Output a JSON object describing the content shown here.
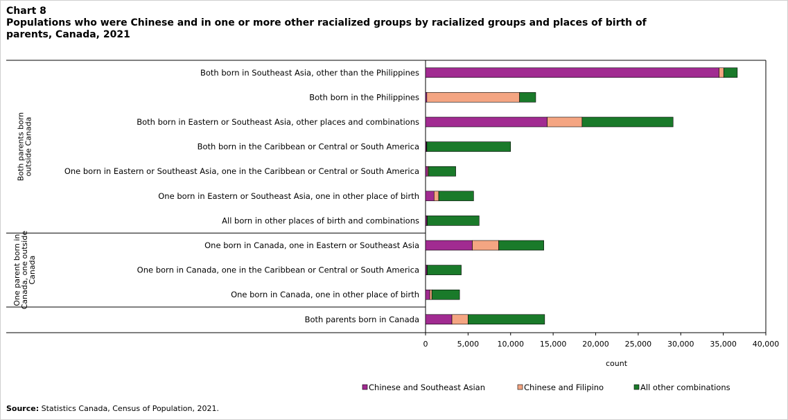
{
  "chart_number": "Chart 8",
  "title": "Populations who were Chinese and in one or more other racialized groups by racialized groups and places of birth of parents, Canada, 2021",
  "source_label": "Source:",
  "source_text": " Statistics Canada, Census of Population, 2021.",
  "colors": {
    "csa": "#a12b91",
    "cf": "#f4a582",
    "other": "#1a7a2a"
  },
  "chart_data": {
    "type": "bar",
    "orientation": "horizontal",
    "stacked": true,
    "xlabel": "count",
    "xlim": [
      0,
      40000
    ],
    "xticks": [
      0,
      5000,
      10000,
      15000,
      20000,
      25000,
      30000,
      35000,
      40000
    ],
    "xtick_labels": [
      "0",
      "5,000",
      "10,000",
      "15,000",
      "20,000",
      "25,000",
      "30,000",
      "35,000",
      "40,000"
    ],
    "groups": [
      {
        "label": "Both parents born outside Canada",
        "first": 0,
        "last": 6
      },
      {
        "label": "One parent born in Canada, one outside Canada",
        "first": 7,
        "last": 9
      }
    ],
    "categories": [
      "Both born in Southeast Asia, other than the Philippines",
      "Both born in the Philippines",
      "Both born in Eastern or Southeast Asia, other places and combinations",
      "Both born in the Caribbean or Central or South America",
      "One born in Eastern or Southeast Asia, one in the Caribbean or Central or South America",
      "One born in Eastern or Southeast Asia, one in other place of birth",
      "All born in other places of birth and combinations",
      "One born in Canada, one in Eastern or Southeast Asia",
      "One born in Canada, one in the Caribbean or Central or South America",
      "One born in Canada, one in other place of birth",
      "Both parents born in Canada"
    ],
    "series": [
      {
        "name": "Chinese and Southeast Asian",
        "values": [
          34500,
          150,
          14300,
          100,
          250,
          1000,
          150,
          5500,
          150,
          500,
          3100
        ]
      },
      {
        "name": "Chinese and Filipino",
        "values": [
          550,
          10900,
          4100,
          50,
          100,
          550,
          50,
          3100,
          50,
          250,
          1900
        ]
      },
      {
        "name": "All other combinations",
        "values": [
          1600,
          1900,
          10700,
          9850,
          3200,
          4100,
          6100,
          5300,
          4000,
          3250,
          9000
        ]
      }
    ],
    "legend_position": "bottom"
  }
}
